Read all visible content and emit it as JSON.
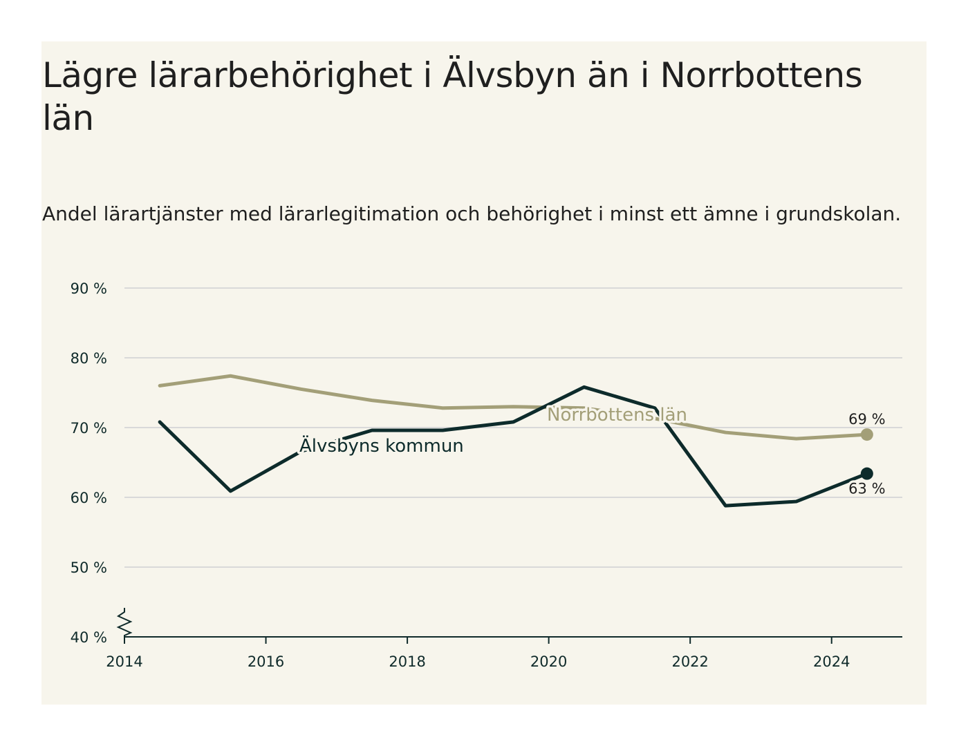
{
  "title": "Lägre lärarbehörighet i Älvsbyn än i Norrbottens län",
  "subtitle": "Andel lärartjänster med lärarlegitimation och behörighet i minst ett ämne i grundskolan.",
  "colors": {
    "background": "#f7f5ec",
    "alvsbyn": "#0d2b2b",
    "norrbotten": "#a39f78",
    "grid": "#d9d9d9",
    "axis": "#0f2a2a"
  },
  "chart_data": {
    "type": "line",
    "x_ticks": [
      "2014",
      "2016",
      "2018",
      "2020",
      "2022",
      "2024"
    ],
    "y_ticks": [
      "40 %",
      "50 %",
      "60 %",
      "70 %",
      "80 %",
      "90 %"
    ],
    "xlim": [
      2014,
      2025
    ],
    "ylim": [
      40,
      90
    ],
    "grid": "horizontal",
    "axis_break": "y-axis",
    "x": [
      2014.5,
      2015.5,
      2016.5,
      2017.5,
      2018.5,
      2019.5,
      2020.5,
      2021.5,
      2022.5,
      2023.5,
      2024.5
    ],
    "series": [
      {
        "name": "Norrbottens län",
        "values": [
          76.0,
          77.4,
          75.5,
          73.9,
          72.8,
          73.0,
          72.8,
          71.3,
          69.3,
          68.4,
          69.0
        ],
        "end_label": "69 %"
      },
      {
        "name": "Älvsbyns kommun",
        "values": [
          70.8,
          60.9,
          66.6,
          69.6,
          69.6,
          70.8,
          75.8,
          72.8,
          58.8,
          59.4,
          63.4
        ],
        "end_label": "63 %"
      }
    ]
  }
}
